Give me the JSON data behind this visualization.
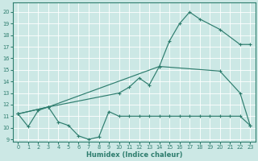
{
  "xlabel": "Humidex (Indice chaleur)",
  "bg_color": "#cce8e5",
  "line_color": "#2e7d6e",
  "grid_color": "#ffffff",
  "xlim": [
    -0.5,
    23.5
  ],
  "ylim": [
    8.8,
    20.8
  ],
  "xticks": [
    0,
    1,
    2,
    3,
    4,
    5,
    6,
    7,
    8,
    9,
    10,
    11,
    12,
    13,
    14,
    15,
    16,
    17,
    18,
    19,
    20,
    21,
    22,
    23
  ],
  "yticks": [
    9,
    10,
    11,
    12,
    13,
    14,
    15,
    16,
    17,
    18,
    19,
    20
  ],
  "line1_x": [
    0,
    1,
    2,
    3,
    4,
    5,
    6,
    7,
    8,
    9,
    10,
    11,
    12,
    13,
    14,
    15,
    16,
    17,
    18,
    19,
    20,
    21,
    22,
    23
  ],
  "line1_y": [
    11.2,
    10.1,
    11.5,
    11.8,
    10.5,
    10.2,
    9.3,
    9.0,
    9.2,
    11.4,
    11.0,
    11.0,
    11.0,
    11.0,
    11.0,
    11.0,
    11.0,
    11.0,
    11.0,
    11.0,
    11.0,
    11.0,
    11.0,
    10.2
  ],
  "line2_x": [
    0,
    3,
    10,
    11,
    12,
    13,
    14,
    15,
    16,
    17,
    18,
    20,
    22,
    23
  ],
  "line2_y": [
    11.2,
    11.8,
    13.0,
    13.5,
    14.3,
    13.7,
    15.3,
    17.5,
    19.0,
    20.0,
    19.4,
    18.5,
    17.2,
    17.2
  ],
  "line3_x": [
    0,
    3,
    14,
    20,
    22,
    23
  ],
  "line3_y": [
    11.2,
    11.8,
    15.3,
    14.9,
    13.0,
    10.2
  ]
}
